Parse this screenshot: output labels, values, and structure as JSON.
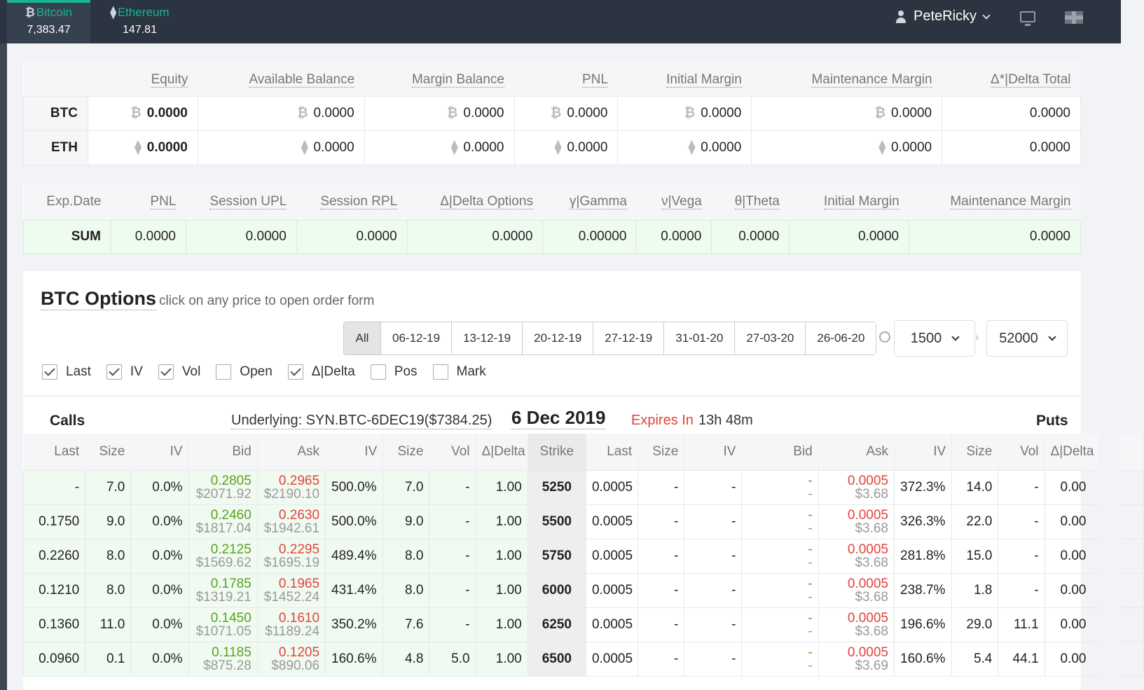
{
  "tickers": [
    {
      "symbol": "₿",
      "name": "Bitcoin",
      "value": "7,383.47",
      "active": true
    },
    {
      "symbol": "⧫",
      "name": "Ethereum",
      "value": "147.81",
      "active": false
    }
  ],
  "user": {
    "name": "PeteRicky"
  },
  "balances": {
    "headers": [
      "Equity",
      "Available Balance",
      "Margin Balance",
      "PNL",
      "Initial Margin",
      "Maintenance Margin",
      "Δ*|Delta Total"
    ],
    "rows": [
      {
        "ccy": "BTC",
        "icon": "₿",
        "values": [
          "0.0000",
          "0.0000",
          "0.0000",
          "0.0000",
          "0.0000",
          "0.0000",
          "0.0000"
        ]
      },
      {
        "ccy": "ETH",
        "icon": "⧫",
        "values": [
          "0.0000",
          "0.0000",
          "0.0000",
          "0.0000",
          "0.0000",
          "0.0000",
          "0.0000"
        ]
      }
    ]
  },
  "summary": {
    "headers": [
      "Exp.Date",
      "PNL",
      "Session UPL",
      "Session RPL",
      "Δ|Delta Options",
      "γ|Gamma",
      "ν|Vega",
      "θ|Theta",
      "Initial Margin",
      "Maintenance Margin"
    ],
    "row_label": "SUM",
    "values": [
      "0.0000",
      "0.0000",
      "0.0000",
      "0.0000",
      "0.00000",
      "0.0000",
      "0.0000",
      "0.0000",
      "0.0000"
    ]
  },
  "options": {
    "title": "BTC Options",
    "subtitle": "click on any price to open order form",
    "dates": [
      "All",
      "06-12-19",
      "13-12-19",
      "20-12-19",
      "27-12-19",
      "31-01-20",
      "27-03-20",
      "26-06-20"
    ],
    "strike_min": "1500",
    "strike_max": "52000",
    "checkboxes": [
      {
        "label": "Last",
        "checked": true
      },
      {
        "label": "IV",
        "checked": true
      },
      {
        "label": "Vol",
        "checked": true
      },
      {
        "label": "Open",
        "checked": false
      },
      {
        "label": "Δ|Delta",
        "checked": true
      },
      {
        "label": "Pos",
        "checked": false
      },
      {
        "label": "Mark",
        "checked": false
      }
    ],
    "calls_label": "Calls",
    "puts_label": "Puts",
    "underlying": "Underlying: SYN.BTC-6DEC19($7384.25)",
    "expiry_date": "6 Dec 2019",
    "expires_label": "Expires In",
    "expires_value": "13h 48m",
    "columns": [
      "Last",
      "Size",
      "IV",
      "Bid",
      "Ask",
      "IV",
      "Size",
      "Vol",
      "Δ|Delta",
      "Strike",
      "Last",
      "Size",
      "IV",
      "Bid",
      "Ask",
      "IV",
      "Size",
      "Vol",
      "Δ|Delta"
    ],
    "rows": [
      {
        "c_last": "-",
        "c_size": "7.0",
        "c_iv": "0.0%",
        "c_bid": "0.2805",
        "c_bid_usd": "$2071.92",
        "c_ask": "0.2965",
        "c_ask_usd": "$2190.10",
        "c_iv2": "500.0%",
        "c_size2": "7.0",
        "c_vol": "-",
        "c_delta": "1.00",
        "strike": "5250",
        "p_last": "0.0005",
        "p_size": "-",
        "p_iv": "-",
        "p_bid": "-",
        "p_bid2": "-",
        "p_ask": "0.0005",
        "p_ask_usd": "$3.68",
        "p_iv2": "372.3%",
        "p_size2": "14.0",
        "p_vol": "-",
        "p_delta": "0.00"
      },
      {
        "c_last": "0.1750",
        "c_size": "9.0",
        "c_iv": "0.0%",
        "c_bid": "0.2460",
        "c_bid_usd": "$1817.04",
        "c_ask": "0.2630",
        "c_ask_usd": "$1942.61",
        "c_iv2": "500.0%",
        "c_size2": "9.0",
        "c_vol": "-",
        "c_delta": "1.00",
        "strike": "5500",
        "p_last": "0.0005",
        "p_size": "-",
        "p_iv": "-",
        "p_bid": "-",
        "p_bid2": "-",
        "p_ask": "0.0005",
        "p_ask_usd": "$3.68",
        "p_iv2": "326.3%",
        "p_size2": "22.0",
        "p_vol": "-",
        "p_delta": "0.00"
      },
      {
        "c_last": "0.2260",
        "c_size": "8.0",
        "c_iv": "0.0%",
        "c_bid": "0.2125",
        "c_bid_usd": "$1569.62",
        "c_ask": "0.2295",
        "c_ask_usd": "$1695.19",
        "c_iv2": "489.4%",
        "c_size2": "8.0",
        "c_vol": "-",
        "c_delta": "1.00",
        "strike": "5750",
        "p_last": "0.0005",
        "p_size": "-",
        "p_iv": "-",
        "p_bid": "-",
        "p_bid2": "-",
        "p_ask": "0.0005",
        "p_ask_usd": "$3.68",
        "p_iv2": "281.8%",
        "p_size2": "15.0",
        "p_vol": "-",
        "p_delta": "0.00"
      },
      {
        "c_last": "0.1210",
        "c_size": "8.0",
        "c_iv": "0.0%",
        "c_bid": "0.1785",
        "c_bid_usd": "$1319.21",
        "c_ask": "0.1965",
        "c_ask_usd": "$1452.24",
        "c_iv2": "431.4%",
        "c_size2": "8.0",
        "c_vol": "-",
        "c_delta": "1.00",
        "strike": "6000",
        "p_last": "0.0005",
        "p_size": "-",
        "p_iv": "-",
        "p_bid": "-",
        "p_bid2": "-",
        "p_ask": "0.0005",
        "p_ask_usd": "$3.68",
        "p_iv2": "238.7%",
        "p_size2": "1.8",
        "p_vol": "-",
        "p_delta": "0.00"
      },
      {
        "c_last": "0.1360",
        "c_size": "11.0",
        "c_iv": "0.0%",
        "c_bid": "0.1450",
        "c_bid_usd": "$1071.05",
        "c_ask": "0.1610",
        "c_ask_usd": "$1189.24",
        "c_iv2": "350.2%",
        "c_size2": "7.6",
        "c_vol": "-",
        "c_delta": "1.00",
        "strike": "6250",
        "p_last": "0.0005",
        "p_size": "-",
        "p_iv": "-",
        "p_bid": "-",
        "p_bid2": "-",
        "p_ask": "0.0005",
        "p_ask_usd": "$3.68",
        "p_iv2": "196.6%",
        "p_size2": "29.0",
        "p_vol": "11.1",
        "p_delta": "0.00"
      },
      {
        "c_last": "0.0960",
        "c_size": "0.1",
        "c_iv": "0.0%",
        "c_bid": "0.1185",
        "c_bid_usd": "$875.28",
        "c_ask": "0.1205",
        "c_ask_usd": "$890.06",
        "c_iv2": "160.6%",
        "c_size2": "4.8",
        "c_vol": "5.0",
        "c_delta": "1.00",
        "strike": "6500",
        "p_last": "0.0005",
        "p_size": "-",
        "p_iv": "-",
        "p_bid": "-",
        "p_bid2": "-",
        "p_ask": "0.0005",
        "p_ask_usd": "$3.69",
        "p_iv2": "160.6%",
        "p_size2": "5.4",
        "p_vol": "44.1",
        "p_delta": "0.00"
      }
    ]
  },
  "colors": {
    "accent": "#1ab394",
    "bid": "#5aa21e",
    "ask": "#e0443c",
    "topbar": "#2b3440"
  }
}
